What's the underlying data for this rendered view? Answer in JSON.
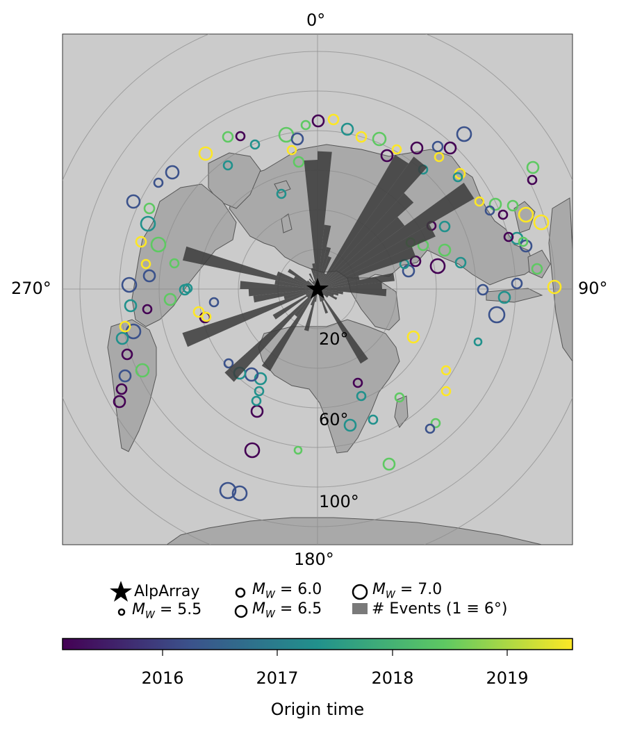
{
  "map": {
    "projection": "azimuthal equidistant, centered on AlpArray",
    "background_color": "#cbcbcb",
    "land_color": "#a9a9a9",
    "coast_color": "#555555",
    "bar_color": "#3c3c3c",
    "azimuth_labels": {
      "north": "0°",
      "east": "90°",
      "south": "180°",
      "west": "270°"
    },
    "distance_labels": [
      "20°",
      "60°",
      "100°"
    ],
    "station": {
      "name": "AlpArray",
      "icon": "star-icon"
    },
    "histogram_unit": "1 ≡ 6°"
  },
  "legend": {
    "station_label": "AlpArray",
    "mag_prefix": "M",
    "mag_sub": "W",
    "mag_55": " = 5.5",
    "mag_60": " = 6.0",
    "mag_65": " = 6.5",
    "mag_70": " = 7.0",
    "events_label": "# Events (1 ≡ 6°)"
  },
  "colorbar": {
    "title": "Origin time",
    "ticks": [
      "2016",
      "2017",
      "2018",
      "2019"
    ],
    "colormap": "viridis",
    "colors": [
      "#440154",
      "#3b528b",
      "#21918c",
      "#5ec962",
      "#fde725"
    ]
  },
  "chart_data": {
    "type": "scatter",
    "title": "",
    "description_series": "Earthquake events (circle size = magnitude, color = origin time) and azimuthal event-count histogram",
    "back_azimuth_bins_deg": [
      0,
      6,
      12,
      18,
      24,
      30,
      36,
      42,
      48,
      54,
      60,
      66,
      72,
      78,
      84,
      90,
      96,
      102,
      108,
      114,
      120,
      126,
      132,
      138,
      144,
      150,
      156,
      162,
      168,
      174,
      180,
      186,
      192,
      198,
      204,
      210,
      216,
      222,
      228,
      234,
      240,
      246,
      252,
      258,
      264,
      270,
      276,
      282,
      288,
      294,
      300,
      306,
      312,
      318,
      324,
      330,
      336,
      342,
      348,
      354
    ],
    "event_counts": [
      32,
      15,
      10,
      8,
      4,
      36,
      38,
      30,
      25,
      42,
      30,
      24,
      10,
      18,
      15,
      16,
      6,
      5,
      4,
      5,
      3,
      3,
      2,
      1,
      20,
      3,
      6,
      3,
      1,
      1,
      0,
      3,
      10,
      4,
      2,
      22,
      8,
      29,
      3,
      12,
      3,
      33,
      8,
      15,
      16,
      18,
      10,
      32,
      10,
      6,
      8,
      3,
      1,
      3,
      2,
      4,
      2,
      5,
      6,
      30
    ],
    "colorbar_range": [
      "2015-03",
      "2019-08"
    ]
  }
}
